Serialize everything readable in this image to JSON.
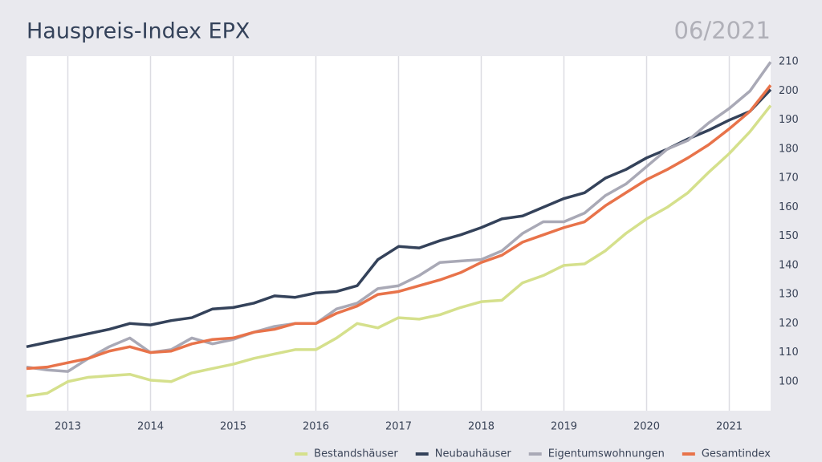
{
  "chart_data": {
    "type": "line",
    "title": "Hauspreis-Index EPX",
    "date": "06/2021",
    "x": [
      2012.5,
      2012.75,
      2013,
      2013.25,
      2013.5,
      2013.75,
      2014,
      2014.25,
      2014.5,
      2014.75,
      2015,
      2015.25,
      2015.5,
      2015.75,
      2016,
      2016.25,
      2016.5,
      2016.75,
      2017,
      2017.25,
      2017.5,
      2017.75,
      2018,
      2018.25,
      2018.5,
      2018.75,
      2019,
      2019.25,
      2019.5,
      2019.75,
      2020,
      2020.25,
      2020.5,
      2020.75,
      2021,
      2021.25,
      2021.5
    ],
    "xlim": [
      2012.5,
      2021.5
    ],
    "xticks": [
      2013,
      2014,
      2015,
      2016,
      2017,
      2018,
      2019,
      2020,
      2021
    ],
    "ylim": [
      90,
      212
    ],
    "yticks": [
      100,
      110,
      120,
      130,
      140,
      150,
      160,
      170,
      180,
      190,
      200,
      210
    ],
    "grid": true,
    "legend": "bottom-right",
    "series": [
      {
        "name": "Bestandshäuser",
        "color": "#d5e08c",
        "values": [
          95,
          96,
          100,
          101.5,
          102,
          102.5,
          100.5,
          100,
          103,
          104.5,
          106,
          108,
          109.5,
          111,
          111,
          115,
          120,
          118.5,
          122,
          121.5,
          123,
          125.5,
          127.5,
          128,
          134,
          136.5,
          140,
          140.5,
          145,
          151,
          156,
          160,
          165,
          172,
          178.5,
          186,
          195
        ]
      },
      {
        "name": "Neubauhäuser",
        "color": "#34425a",
        "values": [
          112,
          113.5,
          115,
          116.5,
          118,
          120,
          119.5,
          121,
          122,
          125,
          125.5,
          127,
          129.5,
          129,
          130.5,
          131,
          133,
          142,
          146.5,
          146,
          148.5,
          150.5,
          153,
          156,
          157,
          160,
          163,
          165,
          170,
          173,
          177,
          180,
          183.5,
          186.5,
          190,
          193,
          200.5
        ]
      },
      {
        "name": "Eigentumswohnungen",
        "color": "#a9a9b6",
        "values": [
          105,
          104,
          103.5,
          108,
          112,
          115,
          110,
          111,
          115,
          113,
          114.5,
          117,
          119,
          120,
          120,
          125,
          127,
          132,
          133,
          136.5,
          141,
          141.5,
          142,
          145,
          151,
          155,
          155,
          158,
          164,
          168,
          174,
          180,
          183,
          189,
          194,
          200,
          210
        ]
      },
      {
        "name": "Gesamtindex",
        "color": "#e8734a",
        "values": [
          104.5,
          105,
          106.5,
          108,
          110.5,
          112,
          110,
          110.5,
          113,
          114.5,
          115,
          117,
          118,
          120,
          120,
          123.5,
          126,
          130,
          131,
          133,
          135,
          137.5,
          141,
          143.5,
          148,
          150.5,
          153,
          155,
          160.5,
          165,
          169.5,
          173,
          177,
          181.5,
          187,
          193,
          202
        ]
      }
    ]
  }
}
